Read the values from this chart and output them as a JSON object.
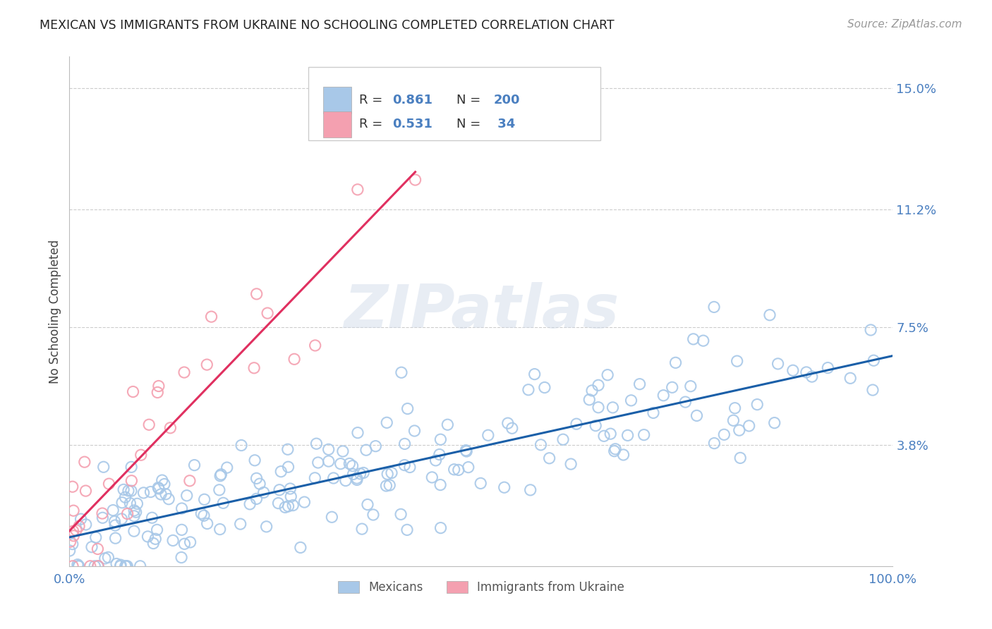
{
  "title": "MEXICAN VS IMMIGRANTS FROM UKRAINE NO SCHOOLING COMPLETED CORRELATION CHART",
  "source": "Source: ZipAtlas.com",
  "ylabel": "No Schooling Completed",
  "xlim": [
    0,
    1.0
  ],
  "ylim": [
    0,
    0.16
  ],
  "ytick_vals": [
    0.038,
    0.075,
    0.112,
    0.15
  ],
  "ytick_labels": [
    "3.8%",
    "7.5%",
    "11.2%",
    "15.0%"
  ],
  "xtick_vals": [
    0.0,
    1.0
  ],
  "xtick_labels": [
    "0.0%",
    "100.0%"
  ],
  "watermark": "ZIPatlas",
  "blue_R": 0.861,
  "blue_N": 200,
  "pink_R": 0.531,
  "pink_N": 34,
  "blue_color": "#a8c8e8",
  "pink_color": "#f4a0b0",
  "blue_line_color": "#1a5fa8",
  "pink_line_color": "#e03060",
  "pink_dash_color": "#f0a0b8",
  "title_color": "#222222",
  "label_color": "#4a7fc0",
  "source_color": "#999999",
  "background_color": "#ffffff",
  "grid_color": "#cccccc",
  "legend_label_mexican": "Mexicans",
  "legend_label_ukraine": "Immigrants from Ukraine"
}
